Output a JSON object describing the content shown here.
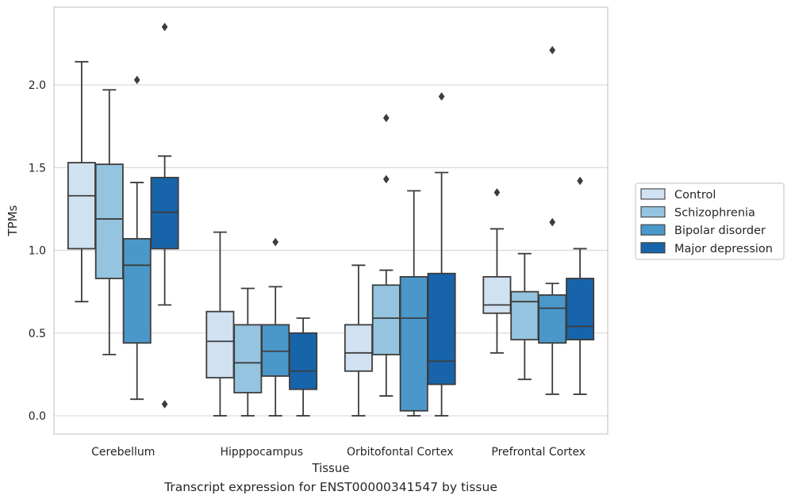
{
  "chart_data": {
    "type": "box",
    "xlabel": "Tissue",
    "ylabel": "TPMs",
    "ylim": [
      -0.11,
      2.47
    ],
    "yticks": [
      0.0,
      0.5,
      1.0,
      1.5,
      2.0
    ],
    "ytick_labels": [
      "0.0",
      "0.5",
      "1.0",
      "1.5",
      "2.0"
    ],
    "grid": "horizontal",
    "legend_position": "right",
    "categories": [
      "Cerebellum",
      "Hipppocampus",
      "Orbitofontal Cortex",
      "Prefrontal Cortex"
    ],
    "series": [
      {
        "name": "Control",
        "color": "#d0e1f2",
        "boxes": [
          {
            "whislo": 0.69,
            "q1": 1.01,
            "med": 1.33,
            "q3": 1.53,
            "whishi": 2.14,
            "fliers": []
          },
          {
            "whislo": 0.0,
            "q1": 0.23,
            "med": 0.45,
            "q3": 0.63,
            "whishi": 1.11,
            "fliers": []
          },
          {
            "whislo": 0.0,
            "q1": 0.27,
            "med": 0.38,
            "q3": 0.55,
            "whishi": 0.91,
            "fliers": []
          },
          {
            "whislo": 0.38,
            "q1": 0.62,
            "med": 0.67,
            "q3": 0.84,
            "whishi": 1.13,
            "fliers": [
              1.35
            ]
          }
        ]
      },
      {
        "name": "Schizophrenia",
        "color": "#94c4df",
        "boxes": [
          {
            "whislo": 0.37,
            "q1": 0.83,
            "med": 1.19,
            "q3": 1.52,
            "whishi": 1.97,
            "fliers": []
          },
          {
            "whislo": 0.0,
            "q1": 0.14,
            "med": 0.32,
            "q3": 0.55,
            "whishi": 0.77,
            "fliers": []
          },
          {
            "whislo": 0.12,
            "q1": 0.37,
            "med": 0.59,
            "q3": 0.79,
            "whishi": 0.88,
            "fliers": [
              1.43,
              1.8
            ]
          },
          {
            "whislo": 0.22,
            "q1": 0.46,
            "med": 0.69,
            "q3": 0.75,
            "whishi": 0.98,
            "fliers": []
          }
        ]
      },
      {
        "name": "Bipolar disorder",
        "color": "#4a98c9",
        "boxes": [
          {
            "whislo": 0.1,
            "q1": 0.44,
            "med": 0.91,
            "q3": 1.07,
            "whishi": 1.41,
            "fliers": [
              2.03
            ]
          },
          {
            "whislo": 0.0,
            "q1": 0.24,
            "med": 0.39,
            "q3": 0.55,
            "whishi": 0.78,
            "fliers": [
              1.05
            ]
          },
          {
            "whislo": 0.0,
            "q1": 0.03,
            "med": 0.59,
            "q3": 0.84,
            "whishi": 1.36,
            "fliers": []
          },
          {
            "whislo": 0.13,
            "q1": 0.44,
            "med": 0.65,
            "q3": 0.73,
            "whishi": 0.8,
            "fliers": [
              1.17,
              2.21
            ]
          }
        ]
      },
      {
        "name": "Major depression",
        "color": "#1764ab",
        "boxes": [
          {
            "whislo": 0.67,
            "q1": 1.01,
            "med": 1.23,
            "q3": 1.44,
            "whishi": 1.57,
            "fliers": [
              2.35,
              0.07
            ]
          },
          {
            "whislo": 0.0,
            "q1": 0.16,
            "med": 0.27,
            "q3": 0.5,
            "whishi": 0.59,
            "fliers": []
          },
          {
            "whislo": 0.0,
            "q1": 0.19,
            "med": 0.33,
            "q3": 0.86,
            "whishi": 1.47,
            "fliers": [
              1.93
            ]
          },
          {
            "whislo": 0.13,
            "q1": 0.46,
            "med": 0.54,
            "q3": 0.83,
            "whishi": 1.01,
            "fliers": [
              1.42
            ]
          }
        ]
      }
    ]
  },
  "caption": "Transcript expression for ENST00000341547 by tissue"
}
